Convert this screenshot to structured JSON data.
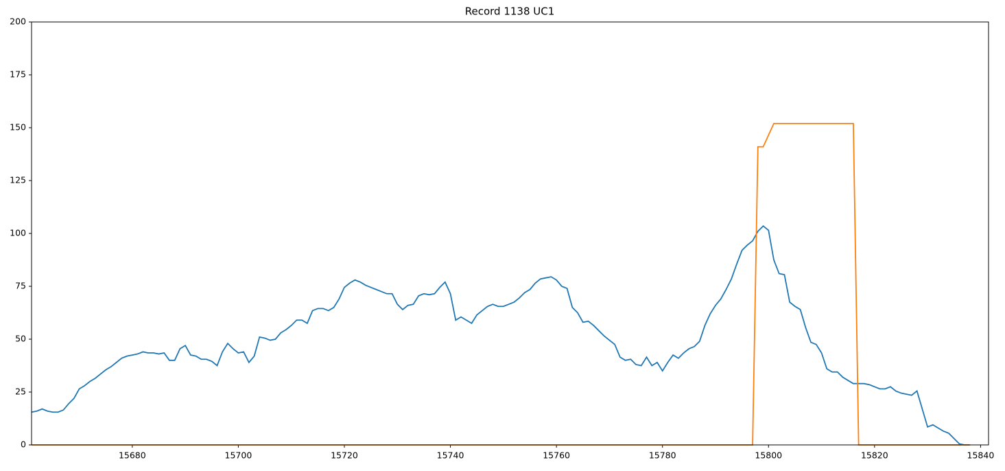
{
  "chart_data": {
    "type": "line",
    "title": "Record 1138 UC1",
    "x": [
      15661,
      15662,
      15663,
      15664,
      15665,
      15666,
      15667,
      15668,
      15669,
      15670,
      15671,
      15672,
      15673,
      15674,
      15675,
      15676,
      15677,
      15678,
      15679,
      15680,
      15681,
      15682,
      15683,
      15684,
      15685,
      15686,
      15687,
      15688,
      15689,
      15690,
      15691,
      15692,
      15693,
      15694,
      15695,
      15696,
      15697,
      15698,
      15699,
      15700,
      15701,
      15702,
      15703,
      15704,
      15705,
      15706,
      15707,
      15708,
      15709,
      15710,
      15711,
      15712,
      15713,
      15714,
      15715,
      15716,
      15717,
      15718,
      15719,
      15720,
      15721,
      15722,
      15723,
      15724,
      15725,
      15726,
      15727,
      15728,
      15729,
      15730,
      15731,
      15732,
      15733,
      15734,
      15735,
      15736,
      15737,
      15738,
      15739,
      15740,
      15741,
      15742,
      15743,
      15744,
      15745,
      15746,
      15747,
      15748,
      15749,
      15750,
      15751,
      15752,
      15753,
      15754,
      15755,
      15756,
      15757,
      15758,
      15759,
      15760,
      15761,
      15762,
      15763,
      15764,
      15765,
      15766,
      15767,
      15768,
      15769,
      15770,
      15771,
      15772,
      15773,
      15774,
      15775,
      15776,
      15777,
      15778,
      15779,
      15780,
      15781,
      15782,
      15783,
      15784,
      15785,
      15786,
      15787,
      15788,
      15789,
      15790,
      15791,
      15792,
      15793,
      15794,
      15795,
      15796,
      15797,
      15798,
      15799,
      15800,
      15801,
      15802,
      15803,
      15804,
      15805,
      15806,
      15807,
      15808,
      15809,
      15810,
      15811,
      15812,
      15813,
      15814,
      15815,
      15816,
      15817,
      15818,
      15819,
      15820,
      15821,
      15822,
      15823,
      15824,
      15825,
      15826,
      15827,
      15828,
      15829,
      15830,
      15831,
      15832,
      15833,
      15834,
      15835,
      15836,
      15837,
      15838
    ],
    "series": [
      {
        "color": "#1f77b4",
        "values": [
          15.5,
          16,
          17,
          16,
          15.5,
          15.5,
          16.5,
          19.5,
          22,
          26.5,
          28,
          30,
          31.5,
          33.5,
          35.5,
          37,
          39,
          41,
          42,
          42.5,
          43,
          44,
          43.5,
          43.5,
          43,
          43.5,
          40,
          40,
          45.5,
          47,
          42.5,
          42,
          40.5,
          40.5,
          39.5,
          37.5,
          44,
          48,
          45.5,
          43.5,
          44,
          39,
          42,
          51,
          50.5,
          49.5,
          50,
          53,
          54.5,
          56.5,
          59,
          59,
          57.5,
          63.5,
          64.5,
          64.5,
          63.5,
          65,
          69,
          74.5,
          76.5,
          78,
          77,
          75.5,
          74.5,
          73.5,
          72.5,
          71.5,
          71.5,
          66.5,
          64,
          66,
          66.5,
          70.5,
          71.5,
          71,
          71.5,
          74.5,
          77,
          71.5,
          59,
          60.5,
          59,
          57.5,
          61.5,
          63.5,
          65.5,
          66.5,
          65.5,
          65.5,
          66.5,
          67.5,
          69.5,
          72,
          73.5,
          76.5,
          78.5,
          79,
          79.5,
          78,
          75,
          74,
          65,
          62.5,
          58,
          58.5,
          56.5,
          54,
          51.5,
          49.5,
          47.5,
          41.5,
          40,
          40.5,
          38,
          37.5,
          41.5,
          37.5,
          39,
          35,
          39,
          42.5,
          41,
          43.5,
          45.5,
          46.5,
          49,
          56.5,
          62,
          66,
          69,
          73.5,
          78.5,
          85.5,
          92,
          94.5,
          96.5,
          101,
          103.5,
          101.5,
          87.5,
          81,
          80.5,
          67.5,
          65.5,
          64,
          55.5,
          48.5,
          47.5,
          43.5,
          36,
          34.5,
          34.5,
          32,
          30.5,
          29,
          29,
          29,
          28.5,
          27.5,
          26.5,
          26.5,
          27.5,
          25.5,
          24.5,
          24,
          23.5,
          25.5,
          17,
          8.5,
          9.5,
          8,
          6.5,
          5.5,
          3,
          0.5,
          0,
          0
        ]
      },
      {
        "color": "#ff7f0e",
        "values": [
          0,
          0,
          0,
          0,
          0,
          0,
          0,
          0,
          0,
          0,
          0,
          0,
          0,
          0,
          0,
          0,
          0,
          0,
          0,
          0,
          0,
          0,
          0,
          0,
          0,
          0,
          0,
          0,
          0,
          0,
          0,
          0,
          0,
          0,
          0,
          0,
          0,
          0,
          0,
          0,
          0,
          0,
          0,
          0,
          0,
          0,
          0,
          0,
          0,
          0,
          0,
          0,
          0,
          0,
          0,
          0,
          0,
          0,
          0,
          0,
          0,
          0,
          0,
          0,
          0,
          0,
          0,
          0,
          0,
          0,
          0,
          0,
          0,
          0,
          0,
          0,
          0,
          0,
          0,
          0,
          0,
          0,
          0,
          0,
          0,
          0,
          0,
          0,
          0,
          0,
          0,
          0,
          0,
          0,
          0,
          0,
          0,
          0,
          0,
          0,
          0,
          0,
          0,
          0,
          0,
          0,
          0,
          0,
          0,
          0,
          0,
          0,
          0,
          0,
          0,
          0,
          0,
          0,
          0,
          0,
          0,
          0,
          0,
          0,
          0,
          0,
          0,
          0,
          0,
          0,
          0,
          0,
          0,
          0,
          0,
          0,
          0,
          141,
          141,
          146.5,
          152,
          152,
          152,
          152,
          152,
          152,
          152,
          152,
          152,
          152,
          152,
          152,
          152,
          152,
          152,
          152,
          0,
          0,
          0,
          0,
          0,
          0,
          0,
          0,
          0,
          0,
          0,
          0,
          0,
          0,
          0,
          0,
          0,
          0,
          0,
          0,
          0,
          0
        ]
      }
    ],
    "xlim": [
      15661,
      15841.5
    ],
    "ylim": [
      0,
      200
    ],
    "xticks": [
      15680,
      15700,
      15720,
      15740,
      15760,
      15780,
      15800,
      15820,
      15840
    ],
    "yticks": [
      0,
      25,
      50,
      75,
      100,
      125,
      150,
      175,
      200
    ]
  }
}
